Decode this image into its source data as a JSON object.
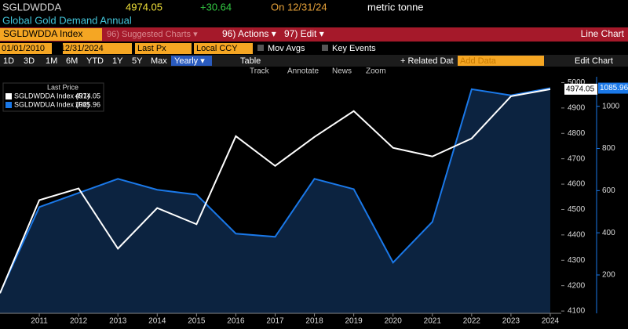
{
  "header": {
    "ticker": "SGLDWDDA",
    "change": "+30.64",
    "date": "On 12/31/24",
    "units": "metric tonne",
    "description": "Global Gold Demand Annual"
  },
  "toolbar": {
    "security": "SGLDWDDA Index",
    "suggested": "96) Suggested Charts ▾",
    "actions": "96) Actions ▾",
    "edit": "97) Edit ▾",
    "chart_kind": "Line Chart",
    "date_from": "01/01/2010",
    "date_to": "- 12/31/2024",
    "field": "Last Px",
    "currency": "Local CCY",
    "mov_avgs": "Mov Avgs",
    "key_events": "Key Events",
    "periods": [
      "1D",
      "3D",
      "1M",
      "6M",
      "YTD",
      "1Y",
      "5Y",
      "Max"
    ],
    "frequency": "Yearly ▾",
    "table": "Table",
    "related": "+ Related Dat",
    "add_data": "Add Data",
    "edit_chart": "Edit Chart",
    "tools": [
      "Track",
      "Annotate",
      "News",
      "Zoom"
    ]
  },
  "chart_data": {
    "type": "line",
    "legend_title": "Last Price",
    "x": [
      2010,
      2011,
      2012,
      2013,
      2014,
      2015,
      2016,
      2017,
      2018,
      2019,
      2020,
      2021,
      2022,
      2023,
      2024
    ],
    "xlim": [
      2010,
      2024.28
    ],
    "xticks": [
      2011,
      2012,
      2013,
      2014,
      2015,
      2016,
      2017,
      2018,
      2019,
      2020,
      2021,
      2022,
      2023,
      2024
    ],
    "ylim": [
      4091,
      5023
    ],
    "yticks": [
      4100,
      4200,
      4300,
      4400,
      4500,
      4600,
      4700,
      4800,
      4900,
      5000
    ],
    "y2lim": [
      18,
      1140
    ],
    "y2ticks": [
      200,
      400,
      600,
      800,
      1000
    ],
    "series": [
      {
        "name": "SGLDWDDA Index  (R1)",
        "color": "#ffffff",
        "values": [
          4170,
          4537,
          4583,
          4346,
          4506,
          4442,
          4789,
          4672,
          4786,
          4888,
          4743,
          4709,
          4780,
          4946,
          4974.05
        ]
      },
      {
        "name": "SGLDWDUA Index  (R2)",
        "color": "#1a78e8",
        "axis": "y2",
        "fill": "#0c2340",
        "values": [
          115,
          522,
          589,
          656,
          604,
          581,
          396,
          381,
          656,
          607,
          259,
          452,
          1081,
          1052,
          1085.96
        ]
      }
    ]
  }
}
